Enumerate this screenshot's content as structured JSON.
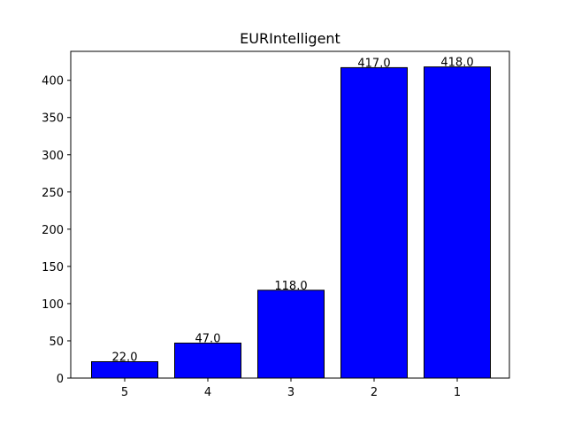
{
  "chart_data": {
    "type": "bar",
    "title": "EURIntelligent",
    "xlabel": "",
    "ylabel": "",
    "categories": [
      "5",
      "4",
      "3",
      "2",
      "1"
    ],
    "values": [
      22.0,
      47.0,
      118.0,
      417.0,
      418.0
    ],
    "value_labels": [
      "22.0",
      "47.0",
      "118.0",
      "417.0",
      "418.0"
    ],
    "ylim": [
      0,
      438.9
    ],
    "yticks": [
      0,
      50,
      100,
      150,
      200,
      250,
      300,
      350,
      400
    ],
    "grid": false,
    "legend": "none",
    "bar_color": "#0000ff",
    "bar_edge_color": "#000000"
  }
}
